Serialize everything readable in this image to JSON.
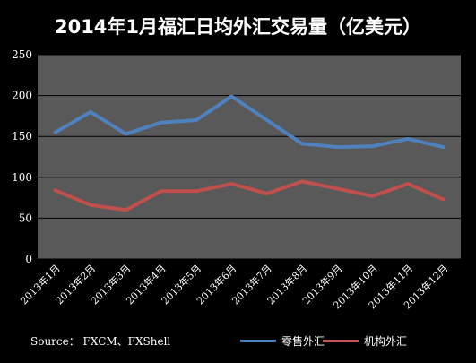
{
  "chart_data": {
    "type": "line",
    "title": "2014年1月福汇日均外汇交易量（亿美元）",
    "categories": [
      "2013年1月",
      "2013年2月",
      "2013年3月",
      "2013年4月",
      "2013年5月",
      "2013年6月",
      "2013年7月",
      "2013年8月",
      "2013年9月",
      "2013年10月",
      "2013年11月",
      "2013年12月"
    ],
    "series": [
      {
        "name": "零售外汇",
        "color": "#4f81bd",
        "values": [
          155,
          180,
          153,
          167,
          170,
          199,
          170,
          141,
          137,
          138,
          147,
          137
        ]
      },
      {
        "name": "机构外汇",
        "color": "#c0504d",
        "values": [
          84,
          66,
          60,
          83,
          83,
          92,
          80,
          95,
          86,
          77,
          92,
          73
        ]
      }
    ],
    "y_ticks": [
      "0",
      "50",
      "100",
      "150",
      "200",
      "250"
    ],
    "ylim": [
      0,
      250
    ],
    "grid": true,
    "legend": "bottom-right",
    "plot_background": "#595959",
    "page_background": "#000000",
    "source": "Source： FXCM、FXShell"
  }
}
